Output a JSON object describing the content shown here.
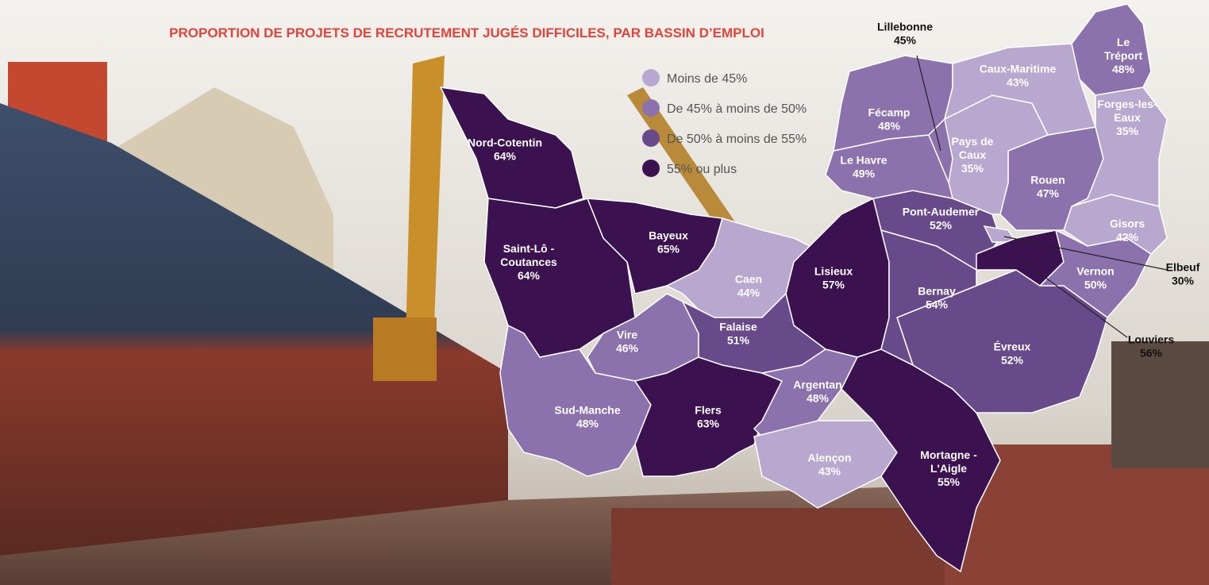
{
  "title": "PROPORTION DE PROJETS DE RECRUTEMENT JUGÉS DIFFICILES, PAR BASSIN D’EMPLOI",
  "legend": [
    {
      "label": "Moins de 45%",
      "color": "#b8a7cf"
    },
    {
      "label": "De 45% à moins de 50%",
      "color": "#8c72ad"
    },
    {
      "label": "De 50% à moins de 55%",
      "color": "#684a8b"
    },
    {
      "label": "55% ou plus",
      "color": "#3b1150"
    }
  ],
  "regions": [
    {
      "name": [
        "Nord-Cotentin"
      ],
      "value": "64%",
      "class": 3
    },
    {
      "name": [
        "Saint-Lô -",
        "Coutances"
      ],
      "value": "64%",
      "class": 3
    },
    {
      "name": [
        "Bayeux"
      ],
      "value": "65%",
      "class": 3
    },
    {
      "name": [
        "Caen"
      ],
      "value": "44%",
      "class": 0
    },
    {
      "name": [
        "Lisieux"
      ],
      "value": "57%",
      "class": 3
    },
    {
      "name": [
        "Vire"
      ],
      "value": "46%",
      "class": 1
    },
    {
      "name": [
        "Falaise"
      ],
      "value": "51%",
      "class": 2
    },
    {
      "name": [
        "Sud-Manche"
      ],
      "value": "48%",
      "class": 1
    },
    {
      "name": [
        "Flers"
      ],
      "value": "63%",
      "class": 3
    },
    {
      "name": [
        "Argentan"
      ],
      "value": "48%",
      "class": 1
    },
    {
      "name": [
        "Alençon"
      ],
      "value": "43%",
      "class": 0
    },
    {
      "name": [
        "Mortagne -",
        "L'Aigle"
      ],
      "value": "55%",
      "class": 3
    },
    {
      "name": [
        "Évreux"
      ],
      "value": "52%",
      "class": 2
    },
    {
      "name": [
        "Bernay"
      ],
      "value": "54%",
      "class": 2
    },
    {
      "name": [
        "Pont-Audemer"
      ],
      "value": "52%",
      "class": 2
    },
    {
      "name": [
        "Elbeuf"
      ],
      "value": "30%",
      "class": 0
    },
    {
      "name": [
        "Louviers"
      ],
      "value": "56%",
      "class": 3
    },
    {
      "name": [
        "Vernon"
      ],
      "value": "50%",
      "class": 1
    },
    {
      "name": [
        "Gisors"
      ],
      "value": "42%",
      "class": 0
    },
    {
      "name": [
        "Rouen"
      ],
      "value": "47%",
      "class": 1
    },
    {
      "name": [
        "Pays de",
        "Caux"
      ],
      "value": "35%",
      "class": 0
    },
    {
      "name": [
        "Le Havre"
      ],
      "value": "49%",
      "class": 1
    },
    {
      "name": [
        "Fécamp"
      ],
      "value": "48%",
      "class": 1
    },
    {
      "name": [
        "Lillebonne"
      ],
      "value": "45%",
      "class": 1
    },
    {
      "name": [
        "Caux-Maritime"
      ],
      "value": "43%",
      "class": 0
    },
    {
      "name": [
        "Le",
        "Tréport"
      ],
      "value": "48%",
      "class": 1
    },
    {
      "name": [
        "Forges-les-",
        "Eaux"
      ],
      "value": "35%",
      "class": 0
    }
  ]
}
